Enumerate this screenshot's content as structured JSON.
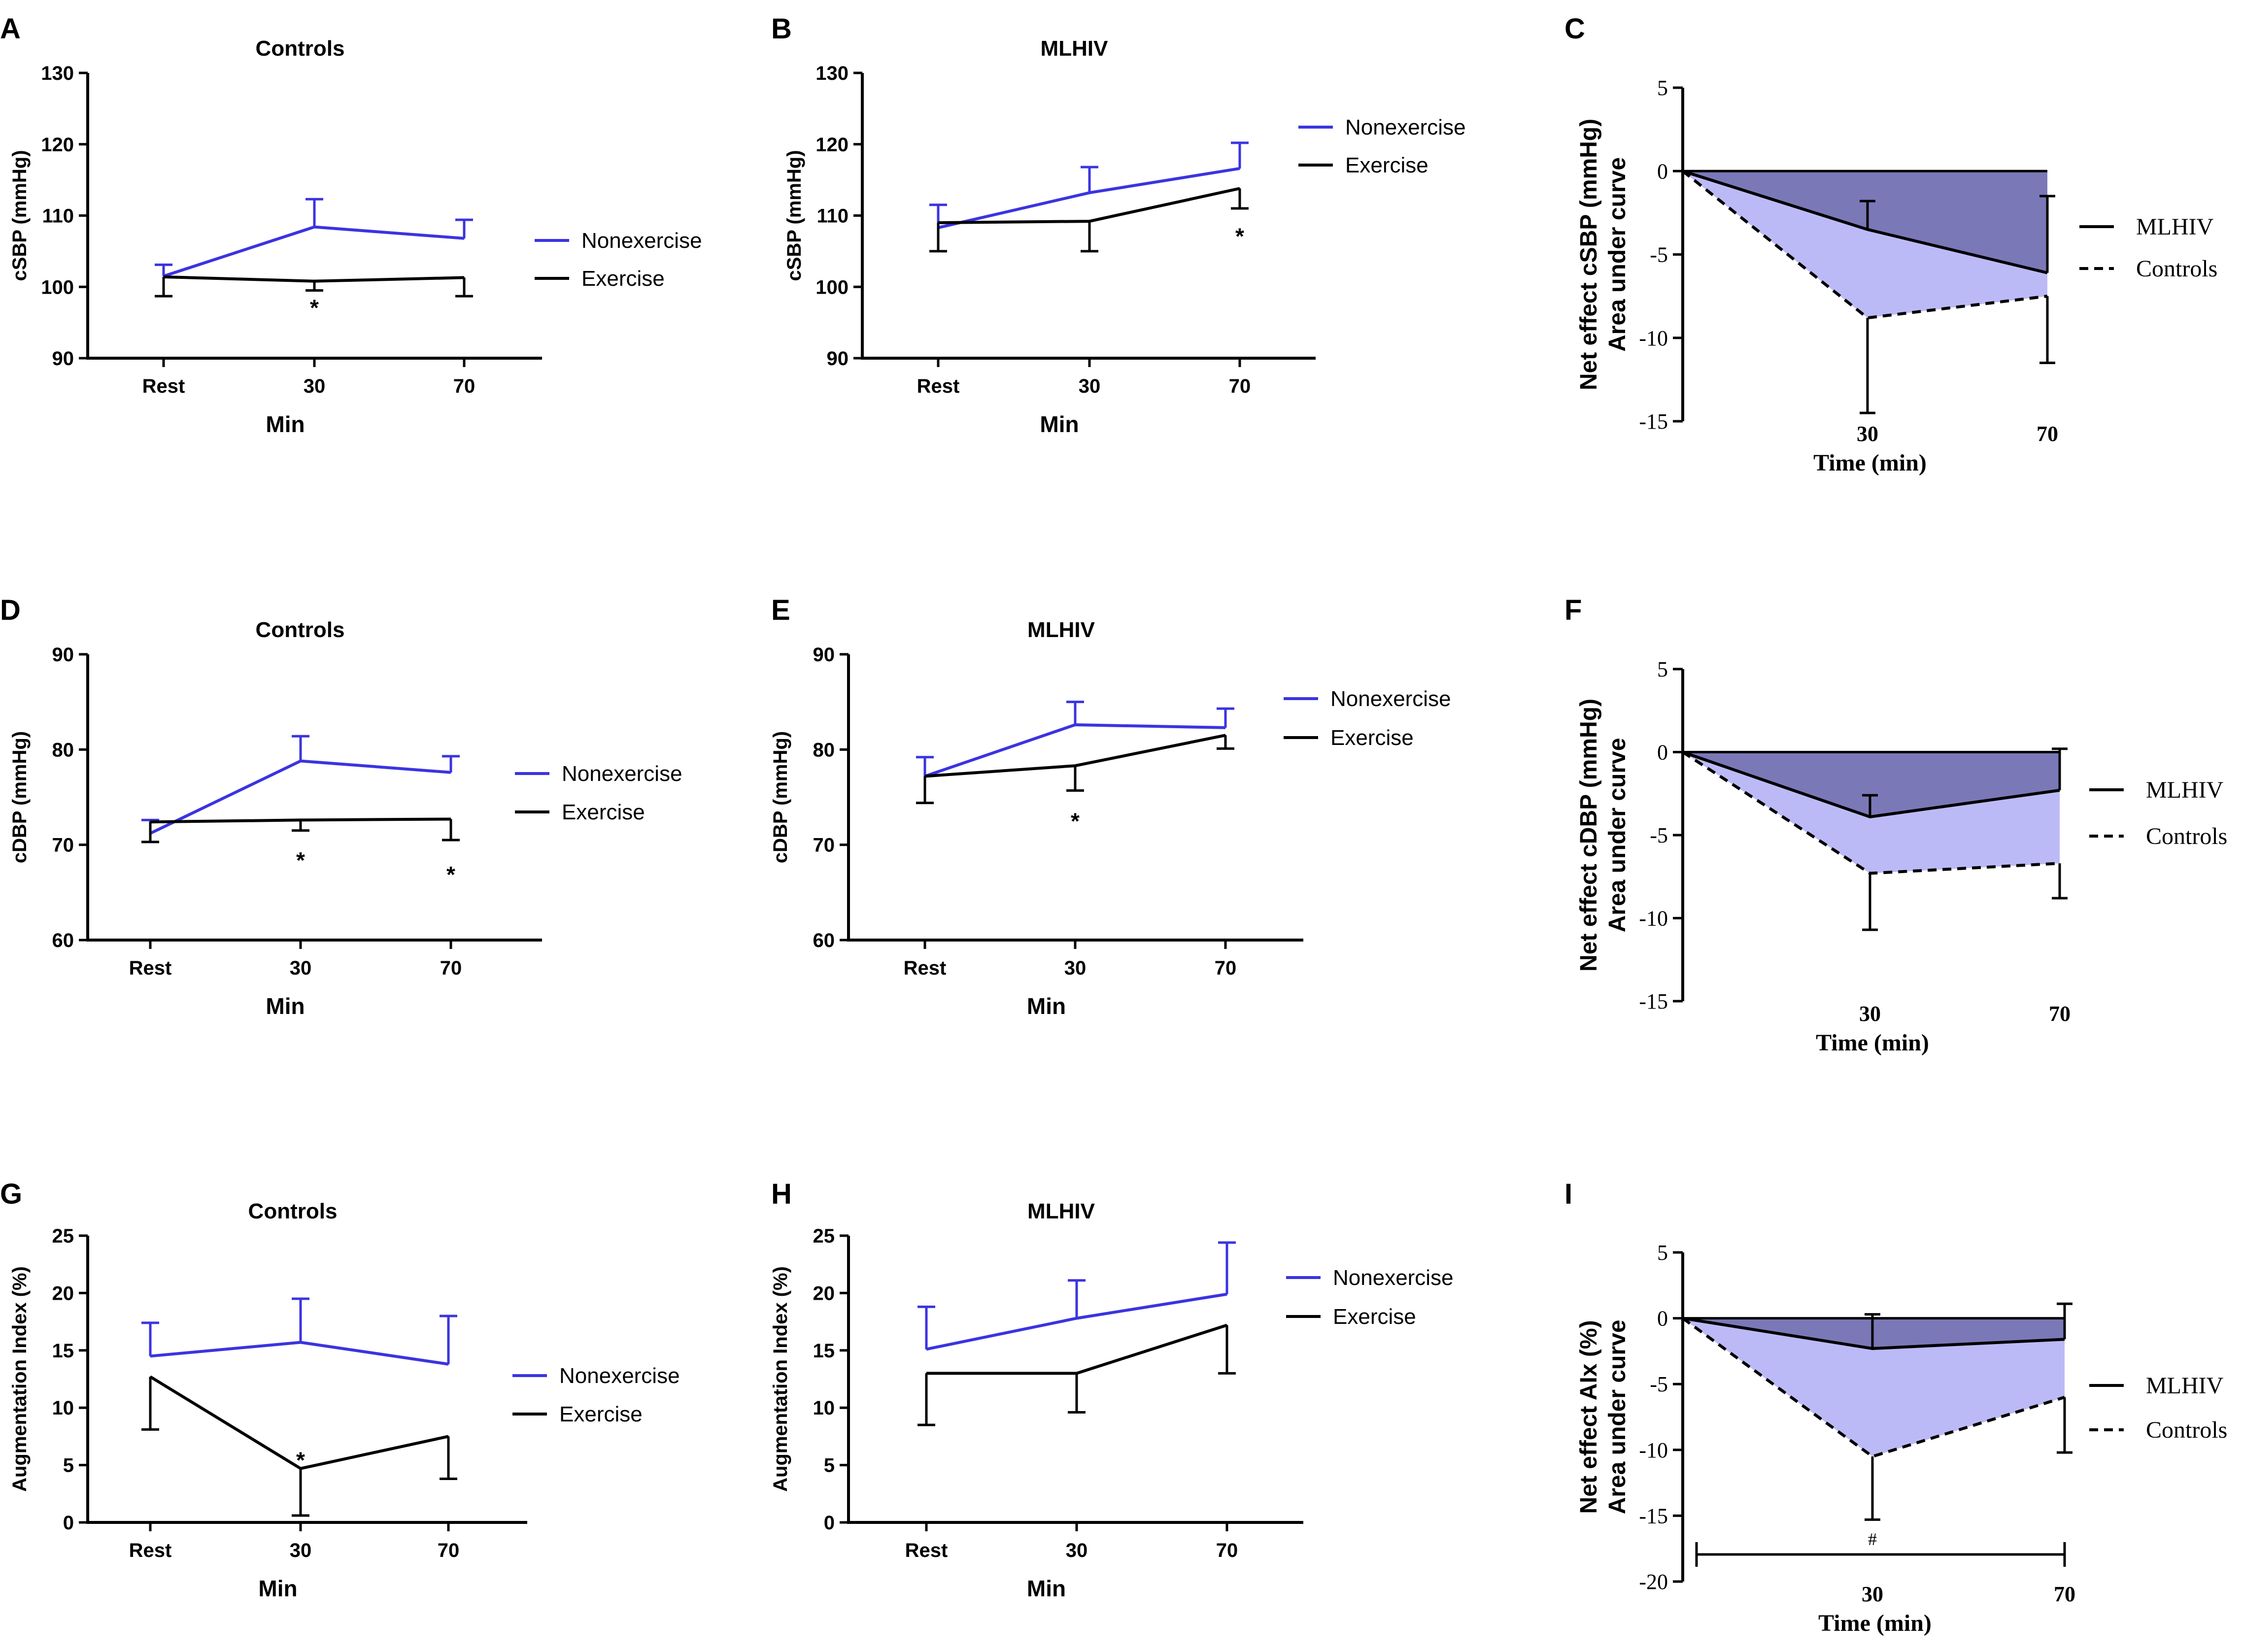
{
  "colors": {
    "nonexercise": "#3b34e0",
    "exercise": "#000000",
    "mlhiv_fill": "#7b78b8",
    "controls_fill": "#bcbaf6"
  },
  "chart_data": [
    {
      "panel": "A",
      "type": "line",
      "title": "Controls",
      "ylabel": "cSBP (mmHg)",
      "xlabel": "Min",
      "categories": [
        "Rest",
        "30",
        "70"
      ],
      "ylim": [
        90,
        130
      ],
      "yticks": [
        90,
        100,
        110,
        120,
        130
      ],
      "legend": [
        "Nonexercise",
        "Exercise"
      ],
      "series": [
        {
          "name": "Nonexercise",
          "values": [
            101.5,
            108.4,
            106.8
          ],
          "err": [
            1.6,
            3.9,
            2.6
          ],
          "err_dir": "up"
        },
        {
          "name": "Exercise",
          "values": [
            101.4,
            100.8,
            101.3
          ],
          "err": [
            2.7,
            1.3,
            2.6
          ],
          "err_dir": "down"
        }
      ],
      "annotations": [
        {
          "text": "*",
          "x": "30",
          "y": 97.5
        }
      ]
    },
    {
      "panel": "B",
      "type": "line",
      "title": "MLHIV",
      "ylabel": "cSBP (mmHg)",
      "xlabel": "Min",
      "categories": [
        "Rest",
        "30",
        "70"
      ],
      "ylim": [
        90,
        130
      ],
      "yticks": [
        90,
        100,
        110,
        120,
        130
      ],
      "legend": [
        "Nonexercise",
        "Exercise"
      ],
      "series": [
        {
          "name": "Nonexercise",
          "values": [
            108.3,
            113.2,
            116.6
          ],
          "err": [
            3.2,
            3.6,
            3.6
          ],
          "err_dir": "up"
        },
        {
          "name": "Exercise",
          "values": [
            109.0,
            109.2,
            113.8
          ],
          "err": [
            4.0,
            4.2,
            2.8
          ],
          "err_dir": "down"
        }
      ],
      "annotations": [
        {
          "text": "*",
          "x": "70",
          "y": 107.5
        }
      ]
    },
    {
      "panel": "C",
      "type": "area",
      "ylabel": [
        "Net effect cSBP (mmHg)",
        "Area under curve"
      ],
      "xlabel": "Time (min)",
      "x": [
        0,
        30,
        70
      ],
      "xticks": [
        "30",
        "70"
      ],
      "ylim": [
        -15,
        5
      ],
      "yticks": [
        5,
        0,
        -5,
        -10,
        -15
      ],
      "legend": [
        "MLHIV",
        "Controls"
      ],
      "series": [
        {
          "name": "MLHIV",
          "values": [
            0,
            -3.5,
            -6.1
          ],
          "err": [
            1.7,
            4.6
          ],
          "err_dir": "up"
        },
        {
          "name": "Controls",
          "values": [
            0,
            -8.8,
            -7.5
          ],
          "err": [
            5.7,
            4.0
          ],
          "err_dir": "down"
        }
      ]
    },
    {
      "panel": "D",
      "type": "line",
      "title": "Controls",
      "ylabel": "cDBP (mmHg)",
      "xlabel": "Min",
      "categories": [
        "Rest",
        "30",
        "70"
      ],
      "ylim": [
        60,
        90
      ],
      "yticks": [
        60,
        70,
        80,
        90
      ],
      "legend": [
        "Nonexercise",
        "Exercise"
      ],
      "series": [
        {
          "name": "Nonexercise",
          "values": [
            71.2,
            78.8,
            77.6
          ],
          "err": [
            1.4,
            2.6,
            1.7
          ],
          "err_dir": "up"
        },
        {
          "name": "Exercise",
          "values": [
            72.4,
            72.6,
            72.7
          ],
          "err": [
            2.1,
            1.1,
            2.2
          ],
          "err_dir": "down"
        }
      ],
      "annotations": [
        {
          "text": "*",
          "x": "30",
          "y": 68.7
        },
        {
          "text": "*",
          "x": "70",
          "y": 67.2
        }
      ]
    },
    {
      "panel": "E",
      "type": "line",
      "title": "MLHIV",
      "ylabel": "cDBP (mmHg)",
      "xlabel": "Min",
      "categories": [
        "Rest",
        "30",
        "70"
      ],
      "ylim": [
        60,
        90
      ],
      "yticks": [
        60,
        70,
        80,
        90
      ],
      "legend": [
        "Nonexercise",
        "Exercise"
      ],
      "series": [
        {
          "name": "Nonexercise",
          "values": [
            77.2,
            82.6,
            82.3
          ],
          "err": [
            2.0,
            2.4,
            2.0
          ],
          "err_dir": "up"
        },
        {
          "name": "Exercise",
          "values": [
            77.2,
            78.3,
            81.5
          ],
          "err": [
            2.8,
            2.6,
            1.4
          ],
          "err_dir": "down"
        }
      ],
      "annotations": [
        {
          "text": "*",
          "x": "30",
          "y": 72.8
        }
      ]
    },
    {
      "panel": "F",
      "type": "area",
      "ylabel": [
        "Net effect cDBP (mmHg)",
        "Area under curve"
      ],
      "xlabel": "Time (min)",
      "x": [
        0,
        30,
        70
      ],
      "xticks": [
        "30",
        "70"
      ],
      "ylim": [
        -15,
        5
      ],
      "yticks": [
        5,
        0,
        -5,
        -10,
        -15
      ],
      "legend": [
        "MLHIV",
        "Controls"
      ],
      "series": [
        {
          "name": "MLHIV",
          "values": [
            0,
            -3.9,
            -2.3
          ],
          "err": [
            1.3,
            2.5
          ],
          "err_dir": "up"
        },
        {
          "name": "Controls",
          "values": [
            0,
            -7.3,
            -6.7
          ],
          "err": [
            3.4,
            2.1
          ],
          "err_dir": "down"
        }
      ]
    },
    {
      "panel": "G",
      "type": "line",
      "title": "Controls",
      "ylabel": "Augmentation Index (%)",
      "xlabel": "Min",
      "categories": [
        "Rest",
        "30",
        "70"
      ],
      "ylim": [
        0,
        25
      ],
      "yticks": [
        0,
        5,
        10,
        15,
        20,
        25
      ],
      "legend": [
        "Nonexercise",
        "Exercise"
      ],
      "series": [
        {
          "name": "Nonexercise",
          "values": [
            14.5,
            15.7,
            13.8
          ],
          "err": [
            2.9,
            3.8,
            4.2
          ],
          "err_dir": "up"
        },
        {
          "name": "Exercise",
          "values": [
            12.7,
            4.7,
            7.5
          ],
          "err": [
            4.6,
            4.1,
            3.7
          ],
          "err_dir": "down"
        }
      ],
      "annotations": [
        {
          "text": "*",
          "x": "30",
          "y": 5.7
        }
      ]
    },
    {
      "panel": "H",
      "type": "line",
      "title": "MLHIV",
      "ylabel": "Augmentation Index (%)",
      "xlabel": "Min",
      "categories": [
        "Rest",
        "30",
        "70"
      ],
      "ylim": [
        0,
        25
      ],
      "yticks": [
        0,
        5,
        10,
        15,
        20,
        25
      ],
      "legend": [
        "Nonexercise",
        "Exercise"
      ],
      "series": [
        {
          "name": "Nonexercise",
          "values": [
            15.1,
            17.8,
            19.9
          ],
          "err": [
            3.7,
            3.3,
            4.5
          ],
          "err_dir": "up"
        },
        {
          "name": "Exercise",
          "values": [
            13.0,
            13.0,
            17.2
          ],
          "err": [
            4.5,
            3.4,
            4.2
          ],
          "err_dir": "down"
        }
      ]
    },
    {
      "panel": "I",
      "type": "area",
      "ylabel": [
        "Net effect AIx (%)",
        "Area under curve"
      ],
      "xlabel": "Time (min)",
      "x": [
        0,
        30,
        70
      ],
      "xticks": [
        "30",
        "70"
      ],
      "ylim": [
        -20,
        5
      ],
      "yticks": [
        5,
        0,
        -5,
        -10,
        -15,
        -20
      ],
      "legend": [
        "MLHIV",
        "Controls"
      ],
      "series": [
        {
          "name": "MLHIV",
          "values": [
            0,
            -2.3,
            -1.6
          ],
          "err": [
            2.6,
            2.7
          ],
          "err_dir": "up"
        },
        {
          "name": "Controls",
          "values": [
            0,
            -10.5,
            -6.0
          ],
          "err": [
            4.8,
            4.2
          ],
          "err_dir": "down"
        }
      ],
      "annotations": [
        {
          "text": "#",
          "x": "30",
          "y": -16.7
        }
      ]
    }
  ]
}
